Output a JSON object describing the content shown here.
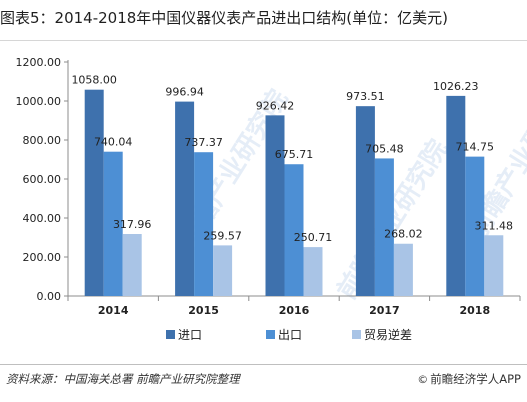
{
  "title": "图表5：2014-2018年中国仪器仪表产品进出口结构(单位：亿美元)",
  "source": "资料来源：中国海关总署 前瞻产业研究院整理",
  "brand": "前瞻经济学人APP",
  "brand_icon": "copyright-icon",
  "watermark": "前瞻产业研究院",
  "chart_data": {
    "type": "bar",
    "categories": [
      "2014",
      "2015",
      "2016",
      "2017",
      "2018"
    ],
    "series": [
      {
        "name": "进口",
        "color": "#3e71ad",
        "values": [
          1058.0,
          996.94,
          926.42,
          973.51,
          1026.23
        ],
        "labels": [
          "1058.00",
          "996.94",
          "926.42",
          "973.51",
          "1026.23"
        ]
      },
      {
        "name": "出口",
        "color": "#4d8fd4",
        "values": [
          740.04,
          737.37,
          675.71,
          705.48,
          714.75
        ],
        "labels": [
          "740.04",
          "737.37",
          "675.71",
          "705.48",
          "714.75"
        ]
      },
      {
        "name": "贸易逆差",
        "color": "#a9c4e6",
        "values": [
          317.96,
          259.57,
          250.71,
          268.02,
          311.48
        ],
        "labels": [
          "317.96",
          "259.57",
          "250.71",
          "268.02",
          "311.48"
        ]
      }
    ],
    "ylim": [
      0,
      1200
    ],
    "yticks": [
      "0.00",
      "200.00",
      "400.00",
      "600.00",
      "800.00",
      "1000.00",
      "1200.00"
    ],
    "ytick_values": [
      0,
      200,
      400,
      600,
      800,
      1000,
      1200
    ],
    "grid": false,
    "legend_position": "bottom"
  }
}
